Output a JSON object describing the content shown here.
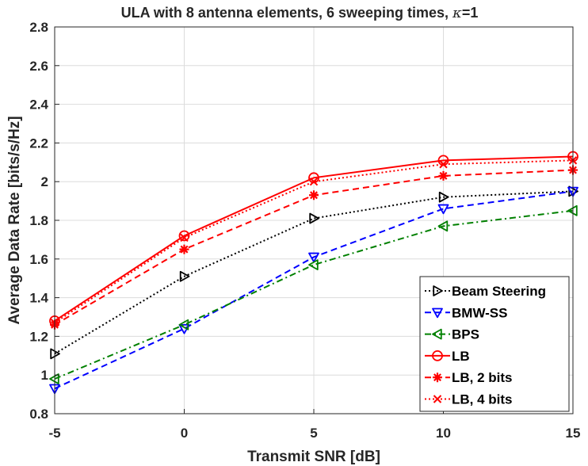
{
  "chart_data": {
    "type": "line",
    "title_main": "ULA with 8 antenna elements, 6 sweeping times, ",
    "title_kappa": "κ",
    "title_tail": "=1",
    "xlabel": "Transmit SNR [dB]",
    "ylabel": "Average Data Rate [bits/s/Hz]",
    "x": [
      -5,
      0,
      5,
      10,
      15
    ],
    "x_ticks": [
      "-5",
      "0",
      "5",
      "10",
      "15"
    ],
    "y_ticks": [
      "0.8",
      "1",
      "1.2",
      "1.4",
      "1.6",
      "1.8",
      "2",
      "2.2",
      "2.4",
      "2.6",
      "2.8"
    ],
    "xlim": [
      -5,
      15
    ],
    "ylim": [
      0.8,
      2.8
    ],
    "grid": true,
    "legend_position": "bottom-right",
    "series": [
      {
        "name": "Beam Steering",
        "values": [
          1.11,
          1.51,
          1.81,
          1.92,
          1.95
        ],
        "color": "#000000",
        "dash": "dotted",
        "marker": "triangle-right"
      },
      {
        "name": "BMW-SS",
        "values": [
          0.93,
          1.24,
          1.61,
          1.86,
          1.95
        ],
        "color": "#0000ff",
        "dash": "dashed",
        "marker": "triangle-down"
      },
      {
        "name": "BPS",
        "values": [
          0.98,
          1.26,
          1.57,
          1.77,
          1.85
        ],
        "color": "#008000",
        "dash": "dashdot",
        "marker": "triangle-left"
      },
      {
        "name": "LB",
        "values": [
          1.28,
          1.72,
          2.02,
          2.11,
          2.13
        ],
        "color": "#ff0000",
        "dash": "solid",
        "marker": "circle"
      },
      {
        "name": "LB, 2 bits",
        "values": [
          1.26,
          1.65,
          1.93,
          2.03,
          2.06
        ],
        "color": "#ff0000",
        "dash": "dashed",
        "marker": "star"
      },
      {
        "name": "LB, 4 bits",
        "values": [
          1.27,
          1.71,
          2.0,
          2.09,
          2.11
        ],
        "color": "#ff0000",
        "dash": "dotted",
        "marker": "cross"
      }
    ]
  }
}
